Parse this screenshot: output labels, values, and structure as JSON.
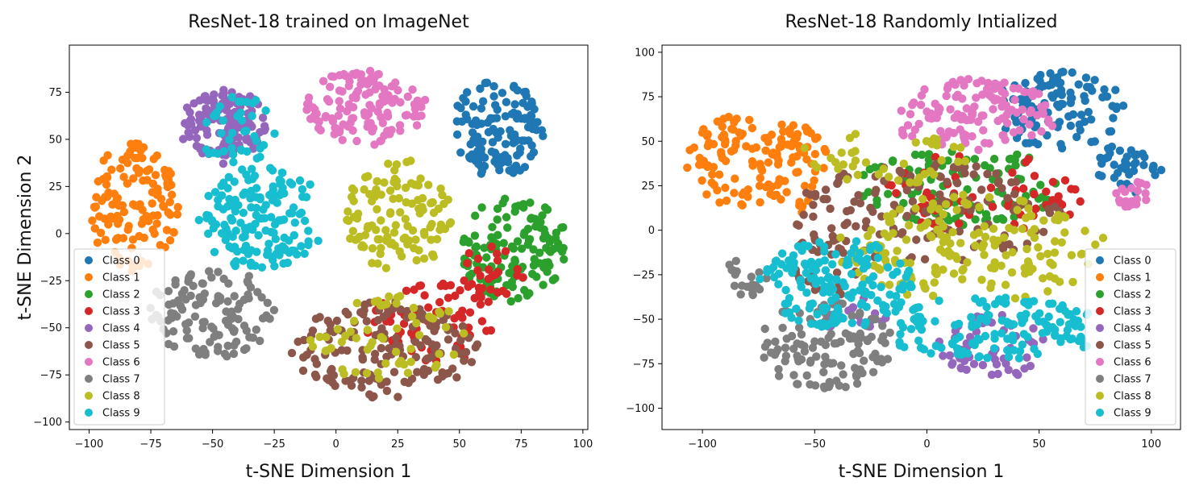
{
  "chart_data": [
    {
      "type": "scatter",
      "title": "ResNet-18 trained on ImageNet",
      "xlabel": "t-SNE Dimension 1",
      "ylabel": "t-SNE Dimension 2",
      "xlim": [
        -108,
        102
      ],
      "ylim": [
        -104,
        100
      ],
      "xticks": [
        -100,
        -75,
        -50,
        -25,
        0,
        25,
        50,
        75,
        100
      ],
      "yticks": [
        -100,
        -75,
        -50,
        -25,
        0,
        25,
        50,
        75
      ],
      "grid": false,
      "legend_position": "lower-left",
      "series": [
        {
          "name": "Class 0",
          "color": "#1f77b4",
          "clusters": [
            {
              "cx": 65,
              "cy": 55,
              "rx": 19,
              "ry": 26,
              "n": 130
            }
          ]
        },
        {
          "name": "Class 1",
          "color": "#ff7f0e",
          "clusters": [
            {
              "cx": -82,
              "cy": 14,
              "rx": 18,
              "ry": 34,
              "n": 130
            }
          ]
        },
        {
          "name": "Class 2",
          "color": "#2ca02c",
          "clusters": [
            {
              "cx": 72,
              "cy": -8,
              "rx": 22,
              "ry": 28,
              "n": 130
            }
          ]
        },
        {
          "name": "Class 3",
          "color": "#d62728",
          "clusters": [
            {
              "cx": 38,
              "cy": -48,
              "rx": 26,
              "ry": 22,
              "n": 70
            },
            {
              "cx": 62,
              "cy": -22,
              "rx": 14,
              "ry": 16,
              "n": 30
            }
          ]
        },
        {
          "name": "Class 4",
          "color": "#9467bd",
          "clusters": [
            {
              "cx": -45,
              "cy": 57,
              "rx": 18,
              "ry": 20,
              "n": 120
            }
          ]
        },
        {
          "name": "Class 5",
          "color": "#8c564b",
          "clusters": [
            {
              "cx": 20,
              "cy": -62,
              "rx": 38,
              "ry": 26,
              "n": 150
            }
          ]
        },
        {
          "name": "Class 6",
          "color": "#e377c2",
          "clusters": [
            {
              "cx": 12,
              "cy": 67,
              "rx": 25,
              "ry": 20,
              "n": 130
            }
          ]
        },
        {
          "name": "Class 7",
          "color": "#7f7f7f",
          "clusters": [
            {
              "cx": -50,
              "cy": -42,
              "rx": 26,
              "ry": 24,
              "n": 120
            }
          ]
        },
        {
          "name": "Class 8",
          "color": "#bcbd22",
          "clusters": [
            {
              "cx": 25,
              "cy": 10,
              "rx": 22,
              "ry": 30,
              "n": 120
            },
            {
              "cx": 20,
              "cy": -55,
              "rx": 32,
              "ry": 24,
              "n": 60
            }
          ]
        },
        {
          "name": "Class 9",
          "color": "#17becf",
          "clusters": [
            {
              "cx": -30,
              "cy": 8,
              "rx": 26,
              "ry": 28,
              "n": 160
            },
            {
              "cx": -40,
              "cy": 55,
              "rx": 16,
              "ry": 18,
              "n": 40
            }
          ]
        }
      ]
    },
    {
      "type": "scatter",
      "title": "ResNet-18 Randomly Intialized",
      "xlabel": "t-SNE Dimension 1",
      "ylabel": "",
      "xlim": [
        -118,
        113
      ],
      "ylim": [
        -112,
        104
      ],
      "xticks": [
        -100,
        -50,
        0,
        50,
        100
      ],
      "yticks": [
        -100,
        -75,
        -50,
        -25,
        0,
        25,
        50,
        75,
        100
      ],
      "grid": false,
      "legend_position": "lower-right",
      "series": [
        {
          "name": "Class 0",
          "color": "#1f77b4",
          "clusters": [
            {
              "cx": 58,
              "cy": 68,
              "rx": 30,
              "ry": 22,
              "n": 110
            },
            {
              "cx": 90,
              "cy": 35,
              "rx": 15,
              "ry": 15,
              "n": 40
            }
          ]
        },
        {
          "name": "Class 1",
          "color": "#ff7f0e",
          "clusters": [
            {
              "cx": -85,
              "cy": 38,
              "rx": 22,
              "ry": 26,
              "n": 90
            },
            {
              "cx": -60,
              "cy": 35,
              "rx": 16,
              "ry": 26,
              "n": 60
            }
          ]
        },
        {
          "name": "Class 2",
          "color": "#2ca02c",
          "clusters": [
            {
              "cx": 15,
              "cy": 25,
              "rx": 45,
              "ry": 22,
              "n": 110
            }
          ]
        },
        {
          "name": "Class 3",
          "color": "#d62728",
          "clusters": [
            {
              "cx": 25,
              "cy": 20,
              "rx": 45,
              "ry": 24,
              "n": 60
            }
          ]
        },
        {
          "name": "Class 4",
          "color": "#9467bd",
          "clusters": [
            {
              "cx": 30,
              "cy": -65,
              "rx": 25,
              "ry": 18,
              "n": 60
            },
            {
              "cx": -30,
              "cy": -50,
              "rx": 15,
              "ry": 12,
              "n": 20
            }
          ]
        },
        {
          "name": "Class 5",
          "color": "#8c564b",
          "clusters": [
            {
              "cx": 0,
              "cy": 10,
              "rx": 60,
              "ry": 28,
              "n": 140
            },
            {
              "cx": -45,
              "cy": -20,
              "rx": 15,
              "ry": 18,
              "n": 30
            }
          ]
        },
        {
          "name": "Class 6",
          "color": "#e377c2",
          "clusters": [
            {
              "cx": 20,
              "cy": 65,
              "rx": 38,
              "ry": 20,
              "n": 130
            },
            {
              "cx": 92,
              "cy": 20,
              "rx": 8,
              "ry": 8,
              "n": 20
            }
          ]
        },
        {
          "name": "Class 7",
          "color": "#7f7f7f",
          "clusters": [
            {
              "cx": -45,
              "cy": -65,
              "rx": 30,
              "ry": 25,
              "n": 120
            },
            {
              "cx": -80,
              "cy": -25,
              "rx": 10,
              "ry": 12,
              "n": 20
            }
          ]
        },
        {
          "name": "Class 8",
          "color": "#bcbd22",
          "clusters": [
            {
              "cx": 20,
              "cy": -10,
              "rx": 60,
              "ry": 30,
              "n": 170
            },
            {
              "cx": -20,
              "cy": 40,
              "rx": 40,
              "ry": 15,
              "n": 40
            }
          ]
        },
        {
          "name": "Class 9",
          "color": "#17becf",
          "clusters": [
            {
              "cx": -40,
              "cy": -30,
              "rx": 35,
              "ry": 25,
              "n": 160
            },
            {
              "cx": 30,
              "cy": -55,
              "rx": 50,
              "ry": 18,
              "n": 140
            }
          ]
        }
      ]
    }
  ]
}
